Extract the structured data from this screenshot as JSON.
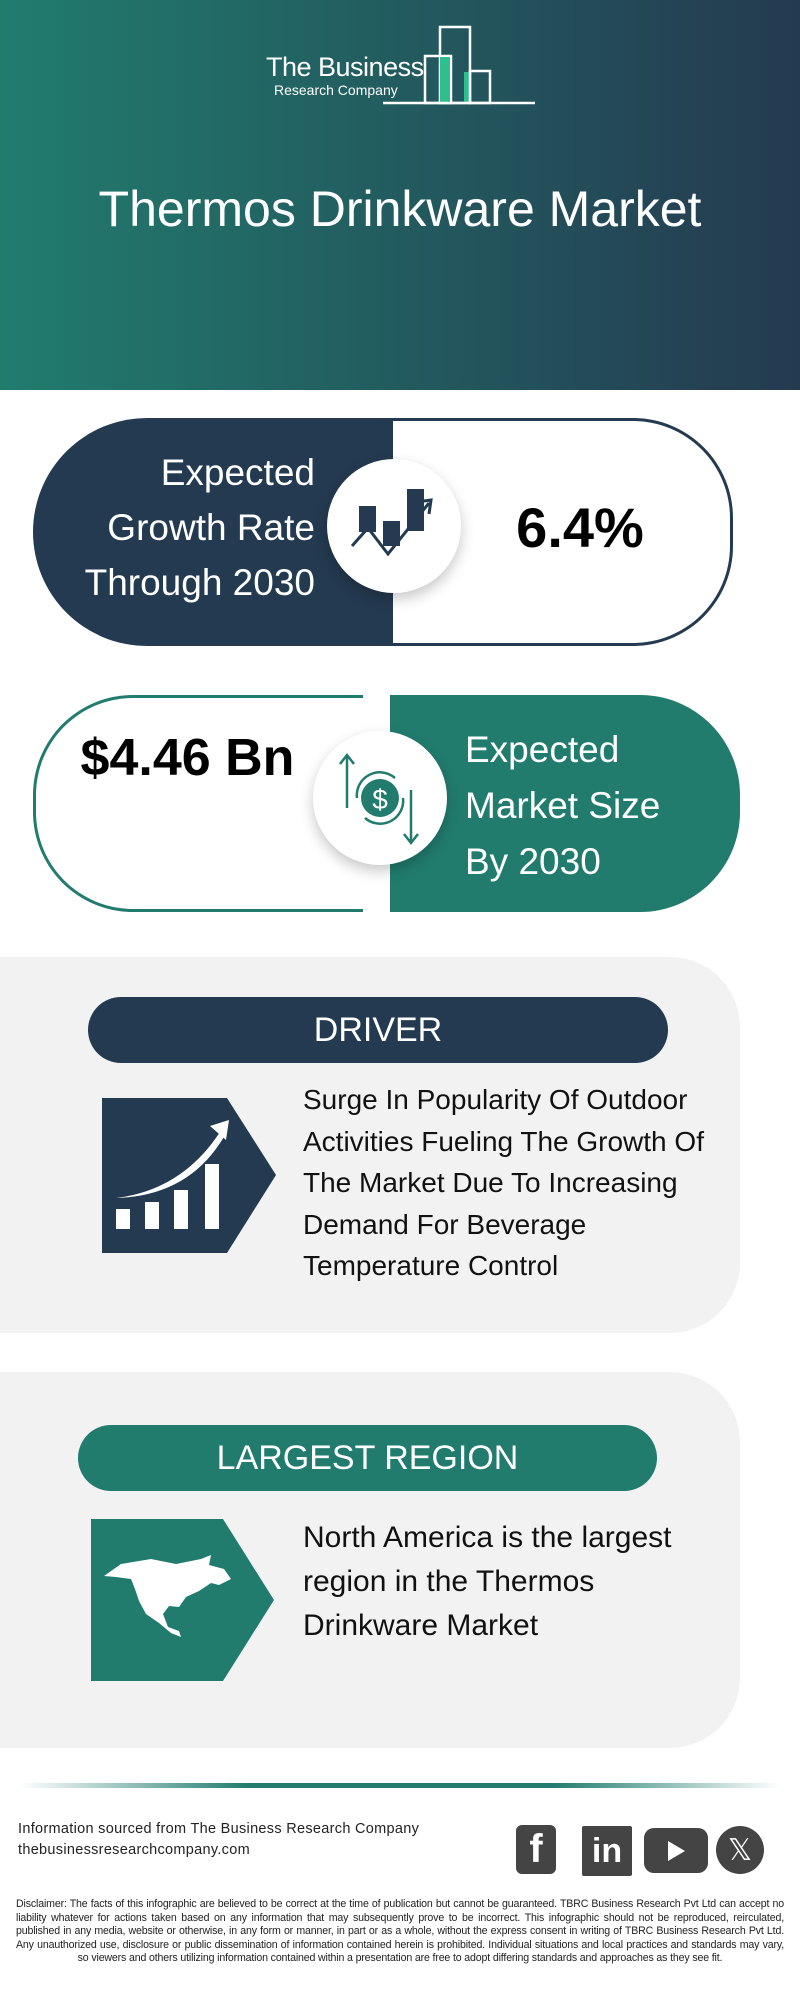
{
  "brand": {
    "line1": "The Business",
    "line2": "Research Company"
  },
  "title": "Thermos Drinkware Market",
  "growth": {
    "label": "Expected Growth Rate Through 2030",
    "value": "6.4%",
    "icon": "growth-chart-icon"
  },
  "market_size": {
    "label": "Expected Market Size By 2030",
    "value": "$4.46 Bn",
    "icon": "dollar-exchange-icon"
  },
  "driver": {
    "heading": "DRIVER",
    "text": "Surge In Popularity Of Outdoor Activities Fueling The Growth Of The Market Due To Increasing Demand For Beverage Temperature Control",
    "icon": "rising-bar-chart-icon"
  },
  "region": {
    "heading": "LARGEST REGION",
    "text": "North America is the largest region in the Thermos Drinkware Market",
    "icon": "north-america-map-icon"
  },
  "footer": {
    "source": "Information sourced from The Business Research Company",
    "website": "thebusinessresearchcompany.com",
    "social": [
      "facebook",
      "linkedin",
      "youtube",
      "x"
    ],
    "disclaimer": "Disclaimer: The facts of this infographic are believed to be correct at the time of publication but cannot be guaranteed. TBRC Business Research Pvt Ltd can accept no liability whatever for actions taken based on any information that may subsequently prove to be incorrect. This infographic should not be reproduced, reirculated, published in any media, website or otherwise, in any form or manner, in part or as a whole, without the express consent in writing of TBRC Business Research Pvt Ltd. Any unauthorized use, disclosure or public dissemination of information contained herein is prohibited. Individual situations and local practices and standards may vary, so viewers and others utilizing information contained within a presentation are free to adopt differing standards and approaches as they see fit."
  },
  "colors": {
    "navy": "#243a50",
    "teal": "#217c6e",
    "panel": "#f2f2f2"
  }
}
